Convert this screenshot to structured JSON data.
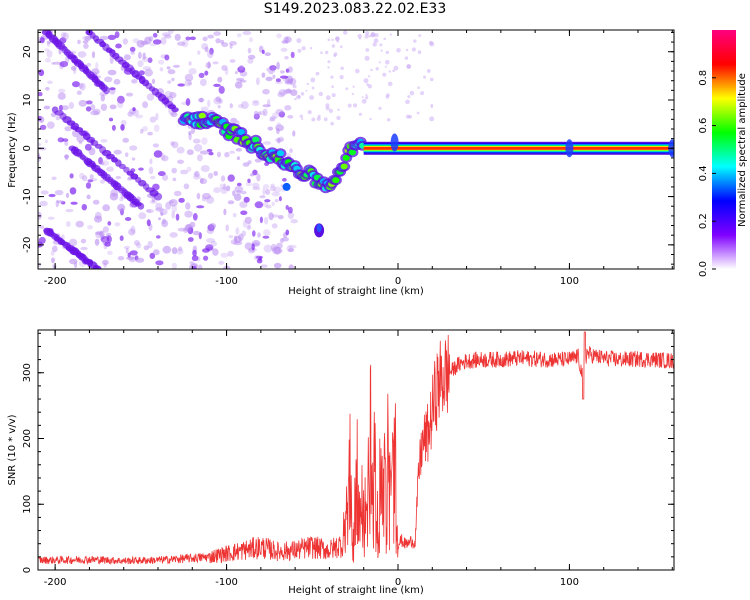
{
  "figure": {
    "title": "S149.2023.083.22.02.E33"
  },
  "chart_data": [
    {
      "type": "heatmap",
      "xlabel": "Height of straight line (km)",
      "ylabel": "Frequency (Hz)",
      "xlim": [
        -210,
        161
      ],
      "ylim": [
        -25,
        24.5
      ],
      "x_ticks": [
        -200,
        -100,
        0,
        100
      ],
      "y_ticks": [
        -20,
        -10,
        0,
        10,
        20
      ],
      "colorbar": {
        "label": "Normalized spectral amplitude",
        "range": [
          0,
          1
        ],
        "ticks": [
          0.0,
          0.2,
          0.4,
          0.6,
          0.8
        ],
        "tick_labels": [
          "0.0",
          "0.2",
          "0.4",
          "0.6",
          "0.8"
        ],
        "colormap": [
          "#ffffff",
          "#7f00ff",
          "#0000ff",
          "#00ffff",
          "#00ff00",
          "#ffff00",
          "#ff0000",
          "#ff007f"
        ]
      },
      "ridge": {
        "x": [
          -125,
          -115,
          -105,
          -95,
          -85,
          -75,
          -65,
          -55,
          -45,
          -40,
          -35,
          -30,
          -25,
          -20,
          -10,
          0,
          20,
          60,
          100,
          161
        ],
        "y": [
          6,
          6,
          5,
          3,
          1,
          -1,
          -3,
          -5,
          -7,
          -8,
          -5,
          -2,
          1,
          0,
          0,
          1,
          0,
          0,
          0,
          0
        ]
      },
      "diagonal_streaks": [
        {
          "x": [
            -205,
            -170
          ],
          "y": [
            24,
            12
          ]
        },
        {
          "x": [
            -180,
            -130
          ],
          "y": [
            24,
            8
          ]
        },
        {
          "x": [
            -200,
            -140
          ],
          "y": [
            8,
            -10
          ]
        },
        {
          "x": [
            -205,
            -175
          ],
          "y": [
            -17,
            -25
          ]
        },
        {
          "x": [
            -190,
            -150
          ],
          "y": [
            0,
            -12
          ]
        }
      ]
    },
    {
      "type": "line",
      "xlabel": "Height of straight line (km)",
      "ylabel": "SNR (10 * v/v)",
      "xlim": [
        -210,
        161
      ],
      "ylim": [
        0,
        365
      ],
      "x_ticks": [
        -200,
        -100,
        0,
        100
      ],
      "y_ticks": [
        0,
        100,
        200,
        300
      ],
      "color": "#ee3333",
      "series": [
        {
          "x": [
            -210,
            -200,
            -180,
            -160,
            -140,
            -120,
            -110,
            -100,
            -90,
            -80,
            -70,
            -60,
            -50,
            -40,
            -32,
            -30,
            -28,
            -26,
            -24,
            -22,
            -20,
            -18,
            -16,
            -14,
            -12,
            -10,
            -8,
            -6,
            -4,
            -2,
            0,
            2,
            4,
            6,
            8,
            10,
            12,
            14,
            16,
            18,
            20,
            22,
            25,
            30,
            35,
            40,
            50,
            60,
            70,
            80,
            90,
            100,
            105,
            108,
            110,
            115,
            120,
            130,
            140,
            150,
            161
          ],
          "y": [
            15,
            15,
            16,
            14,
            15,
            18,
            20,
            25,
            30,
            35,
            28,
            30,
            35,
            30,
            40,
            95,
            130,
            70,
            150,
            60,
            120,
            90,
            170,
            140,
            80,
            130,
            170,
            150,
            110,
            175,
            40,
            45,
            40,
            40,
            45,
            40,
            145,
            190,
            200,
            210,
            240,
            270,
            290,
            300,
            312,
            318,
            320,
            320,
            322,
            321,
            320,
            320,
            325,
            290,
            330,
            325,
            322,
            320,
            321,
            320,
            318
          ]
        }
      ]
    }
  ]
}
